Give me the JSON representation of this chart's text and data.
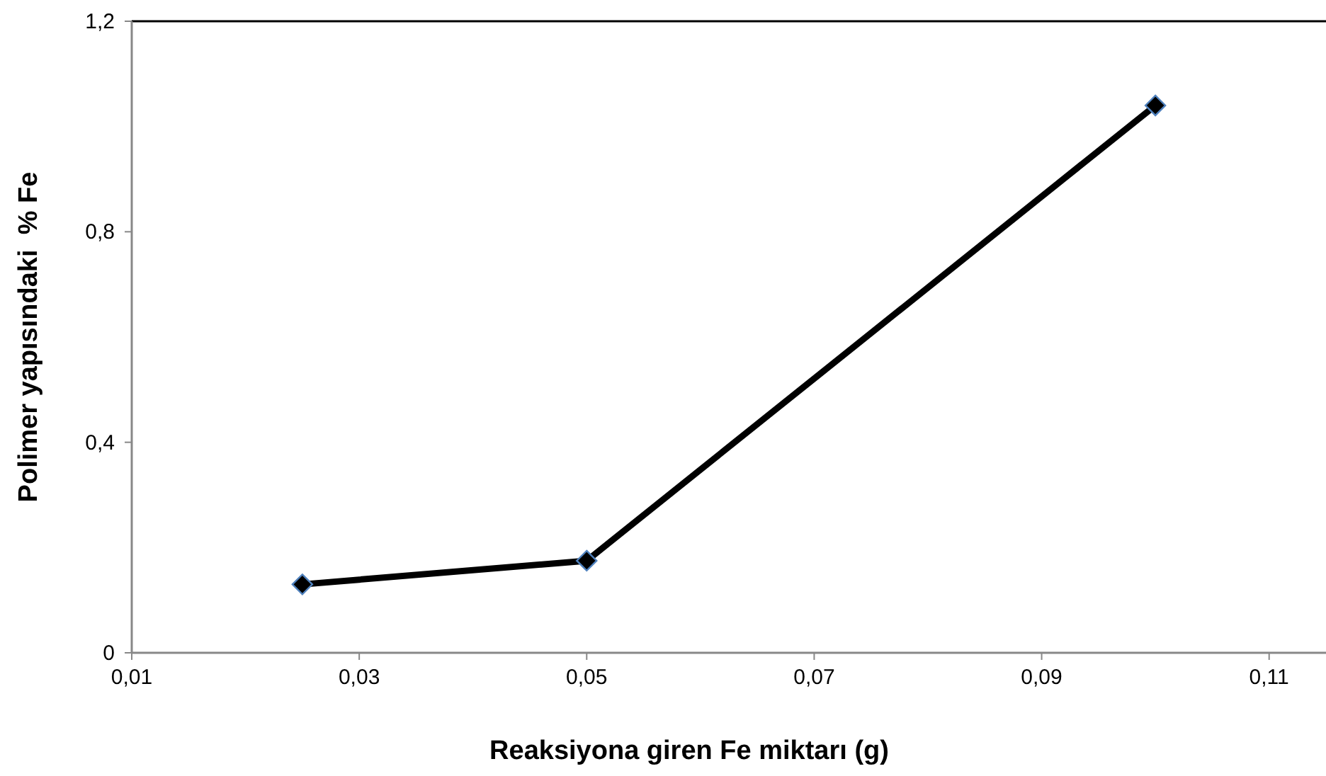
{
  "chart_data": {
    "type": "line",
    "xlabel": "Reaksiyona giren Fe miktarı (g)",
    "ylabel": "Polimer yapısındaki  % Fe",
    "x": [
      0.025,
      0.05,
      0.1
    ],
    "series": [
      {
        "color": "#000000",
        "values": [
          0.13,
          0.175,
          1.04
        ]
      }
    ],
    "xlim": [
      0.01,
      0.115
    ],
    "xticks": [
      {
        "value": 0.01,
        "label": "0,01"
      },
      {
        "value": 0.03,
        "label": "0,03"
      },
      {
        "value": 0.05,
        "label": "0,05"
      },
      {
        "value": 0.07,
        "label": "0,07"
      },
      {
        "value": 0.09,
        "label": "0,09"
      },
      {
        "value": 0.11,
        "label": "0,11"
      }
    ],
    "ylim": [
      0,
      1.2
    ],
    "yticks": [
      0,
      {
        "value": 0.4,
        "label": "0,4"
      },
      {
        "value": 0.8,
        "label": "0,8"
      },
      {
        "value": 1.2,
        "label": "1,2"
      }
    ],
    "grid": false,
    "marker": "diamond",
    "line_style": "solid"
  }
}
